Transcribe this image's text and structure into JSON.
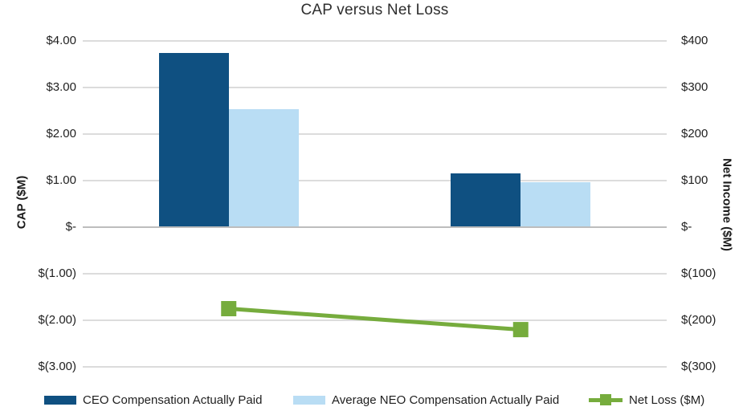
{
  "chart_data": {
    "type": "bar",
    "title": "CAP versus Net Loss",
    "categories": [
      "",
      ""
    ],
    "grid": true,
    "legend_position": "bottom",
    "left_axis": {
      "title": "CAP ($M)",
      "range": [
        -3,
        4
      ],
      "tick_values": [
        4,
        3,
        2,
        1,
        0,
        -1,
        -2,
        -3
      ],
      "ticks": [
        "$4.00",
        "$3.00",
        "$2.00",
        "$1.00",
        "$-",
        "$(1.00)",
        "$(2.00)",
        "$(3.00)"
      ]
    },
    "right_axis": {
      "title": "Net Income ($M)",
      "range": [
        -300,
        400
      ],
      "tick_values": [
        400,
        300,
        200,
        100,
        0,
        -100,
        -200,
        -300
      ],
      "ticks": [
        "$400",
        "$300",
        "$200",
        "$100",
        "$-",
        "$(100)",
        "$(200)",
        "$(300)"
      ]
    },
    "series": [
      {
        "name": "CEO Compensation Actually Paid",
        "type": "bar",
        "axis": "left",
        "color": "#0f5081",
        "values": [
          3.75,
          1.15
        ]
      },
      {
        "name": "Average NEO Compensation Actually Paid",
        "type": "bar",
        "axis": "left",
        "color": "#b9ddf4",
        "values": [
          2.53,
          0.96
        ]
      },
      {
        "name": "Net Loss ($M)",
        "type": "line",
        "axis": "right",
        "color": "#76ac3d",
        "values": [
          -175,
          -220
        ]
      }
    ]
  },
  "colors": {
    "ceo_bar": "#0f5081",
    "neo_bar": "#b9ddf4",
    "net_loss_line": "#76ac3d",
    "gridline": "#dcdcdc",
    "zero_line": "#bdbdbd",
    "text": "#1f1f1f"
  }
}
